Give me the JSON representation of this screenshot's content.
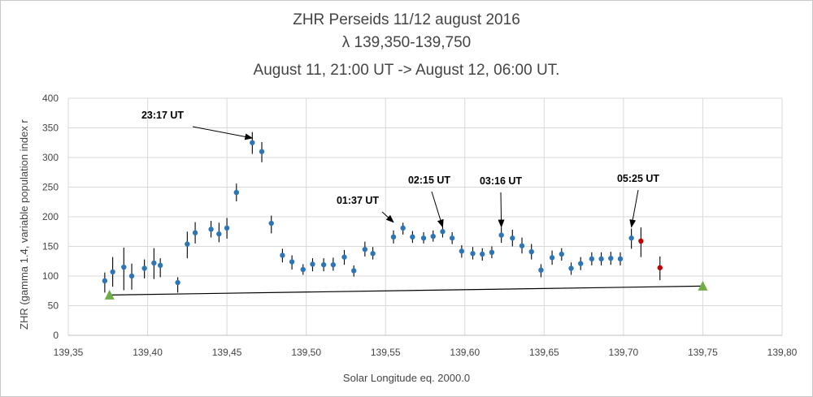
{
  "chart_data": {
    "type": "scatter",
    "title": "ZHR Perseids 11/12 august 2016",
    "subtitle_1": "λ 139,350-139,750",
    "subtitle_2": "August 11, 21:00 UT -> August 12, 06:00 UT.",
    "xlabel": "Solar Longitude eq. 2000.0",
    "ylabel": "ZHR (gamma 1.4,  variable population index r",
    "xlim": [
      139.35,
      139.8
    ],
    "ylim": [
      0,
      400
    ],
    "xticks": [
      "139,35",
      "139,40",
      "139,45",
      "139,50",
      "139,55",
      "139,60",
      "139,65",
      "139,70",
      "139,75",
      "139,80"
    ],
    "yticks": [
      "0",
      "50",
      "100",
      "150",
      "200",
      "250",
      "300",
      "350",
      "400"
    ],
    "grid": true,
    "series": [
      {
        "color": "#2e75b6",
        "points": [
          {
            "x": 139.373,
            "y": 92,
            "lo": 72,
            "hi": 106
          },
          {
            "x": 139.378,
            "y": 107,
            "lo": 82,
            "hi": 132
          },
          {
            "x": 139.385,
            "y": 115,
            "lo": 76,
            "hi": 148
          },
          {
            "x": 139.39,
            "y": 100,
            "lo": 77,
            "hi": 121
          },
          {
            "x": 139.398,
            "y": 113,
            "lo": 96,
            "hi": 128
          },
          {
            "x": 139.404,
            "y": 122,
            "lo": 95,
            "hi": 147
          },
          {
            "x": 139.408,
            "y": 118,
            "lo": 98,
            "hi": 130
          },
          {
            "x": 139.419,
            "y": 89,
            "lo": 72,
            "hi": 98
          },
          {
            "x": 139.425,
            "y": 154,
            "lo": 130,
            "hi": 175
          },
          {
            "x": 139.43,
            "y": 173,
            "lo": 155,
            "hi": 191
          },
          {
            "x": 139.44,
            "y": 179,
            "lo": 165,
            "hi": 193
          },
          {
            "x": 139.445,
            "y": 171,
            "lo": 157,
            "hi": 190
          },
          {
            "x": 139.45,
            "y": 181,
            "lo": 163,
            "hi": 198
          },
          {
            "x": 139.456,
            "y": 241,
            "lo": 226,
            "hi": 256
          },
          {
            "x": 139.466,
            "y": 325,
            "lo": 306,
            "hi": 343
          },
          {
            "x": 139.472,
            "y": 310,
            "lo": 292,
            "hi": 326
          },
          {
            "x": 139.478,
            "y": 189,
            "lo": 172,
            "hi": 202
          },
          {
            "x": 139.485,
            "y": 135,
            "lo": 123,
            "hi": 146
          },
          {
            "x": 139.491,
            "y": 124,
            "lo": 111,
            "hi": 135
          },
          {
            "x": 139.498,
            "y": 111,
            "lo": 102,
            "hi": 120
          },
          {
            "x": 139.504,
            "y": 120,
            "lo": 108,
            "hi": 130
          },
          {
            "x": 139.511,
            "y": 119,
            "lo": 108,
            "hi": 130
          },
          {
            "x": 139.517,
            "y": 119,
            "lo": 109,
            "hi": 131
          },
          {
            "x": 139.524,
            "y": 132,
            "lo": 119,
            "hi": 144
          },
          {
            "x": 139.53,
            "y": 109,
            "lo": 99,
            "hi": 118
          },
          {
            "x": 139.537,
            "y": 145,
            "lo": 133,
            "hi": 158
          },
          {
            "x": 139.542,
            "y": 138,
            "lo": 128,
            "hi": 149
          },
          {
            "x": 139.555,
            "y": 166,
            "lo": 155,
            "hi": 177
          },
          {
            "x": 139.561,
            "y": 181,
            "lo": 170,
            "hi": 190
          },
          {
            "x": 139.567,
            "y": 166,
            "lo": 156,
            "hi": 176
          },
          {
            "x": 139.574,
            "y": 164,
            "lo": 155,
            "hi": 174
          },
          {
            "x": 139.58,
            "y": 167,
            "lo": 158,
            "hi": 177
          },
          {
            "x": 139.586,
            "y": 175,
            "lo": 165,
            "hi": 184
          },
          {
            "x": 139.592,
            "y": 164,
            "lo": 154,
            "hi": 174
          },
          {
            "x": 139.598,
            "y": 142,
            "lo": 131,
            "hi": 152
          },
          {
            "x": 139.605,
            "y": 138,
            "lo": 128,
            "hi": 149
          },
          {
            "x": 139.611,
            "y": 137,
            "lo": 126,
            "hi": 147
          },
          {
            "x": 139.617,
            "y": 140,
            "lo": 130,
            "hi": 150
          },
          {
            "x": 139.623,
            "y": 169,
            "lo": 156,
            "hi": 182
          },
          {
            "x": 139.63,
            "y": 164,
            "lo": 150,
            "hi": 178
          },
          {
            "x": 139.636,
            "y": 151,
            "lo": 138,
            "hi": 165
          },
          {
            "x": 139.642,
            "y": 141,
            "lo": 128,
            "hi": 154
          },
          {
            "x": 139.648,
            "y": 110,
            "lo": 98,
            "hi": 120
          },
          {
            "x": 139.655,
            "y": 131,
            "lo": 119,
            "hi": 143
          },
          {
            "x": 139.661,
            "y": 137,
            "lo": 126,
            "hi": 147
          },
          {
            "x": 139.667,
            "y": 113,
            "lo": 102,
            "hi": 123
          },
          {
            "x": 139.673,
            "y": 121,
            "lo": 110,
            "hi": 132
          },
          {
            "x": 139.68,
            "y": 129,
            "lo": 118,
            "hi": 140
          },
          {
            "x": 139.686,
            "y": 129,
            "lo": 118,
            "hi": 140
          },
          {
            "x": 139.692,
            "y": 130,
            "lo": 119,
            "hi": 141
          },
          {
            "x": 139.698,
            "y": 129,
            "lo": 118,
            "hi": 140
          },
          {
            "x": 139.705,
            "y": 164,
            "lo": 146,
            "hi": 180
          }
        ]
      },
      {
        "color": "#c00000",
        "points": [
          {
            "x": 139.711,
            "y": 159,
            "lo": 132,
            "hi": 182
          },
          {
            "x": 139.723,
            "y": 114,
            "lo": 93,
            "hi": 133
          }
        ]
      },
      {
        "color": "#70ad47",
        "marker": "triangle",
        "points": [
          {
            "x": 139.376,
            "y": 68
          },
          {
            "x": 139.75,
            "y": 83
          }
        ]
      }
    ],
    "trend_line": {
      "x1": 139.376,
      "y1": 68,
      "x2": 139.75,
      "y2": 83
    },
    "annotations": [
      {
        "text": "23:17 UT",
        "x": 139.466,
        "y": 330
      },
      {
        "text": "01:37 UT",
        "x": 139.555,
        "y": 188
      },
      {
        "text": "02:15 UT",
        "x": 139.586,
        "y": 180
      },
      {
        "text": "03:16 UT",
        "x": 139.623,
        "y": 180
      },
      {
        "text": "05:25 UT",
        "x": 139.705,
        "y": 180
      }
    ]
  }
}
